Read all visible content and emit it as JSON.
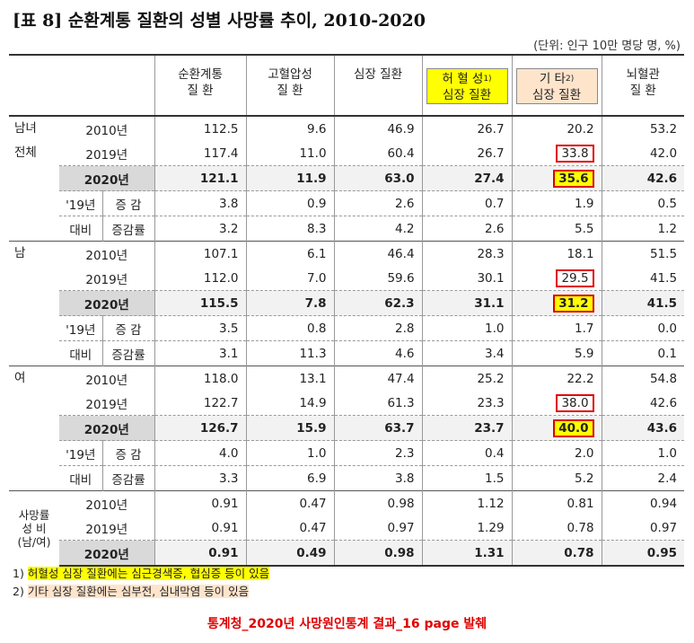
{
  "title": "[표 8] 순환계통 질환의 성별 사망률 추이, 2010-2020",
  "unit": "(단위: 인구 10만 명당 명, %)",
  "headers": {
    "c1_l1": "순환계통",
    "c1_l2": "질      환",
    "c2_l1": "고혈압성",
    "c2_l2": "질      환",
    "c3_l1": "심장 질환",
    "c4_l1": "허 혈 성",
    "c4_sup": "1)",
    "c4_l2": "심장 질환",
    "c5_l1": "기      타",
    "c5_sup": "2)",
    "c5_l2": "심장 질환",
    "c6_l1": "뇌혈관",
    "c6_l2": "질   환"
  },
  "groups": {
    "all_l1": "남녀",
    "all_l2": "전체",
    "male": "남",
    "female": "여",
    "ratio_l1": "사망률",
    "ratio_l2": "성 비",
    "ratio_l3": "(남/여)"
  },
  "labels": {
    "y2010": "2010년",
    "y2019": "2019년",
    "y2020": "2020년",
    "vs19": "'19년",
    "vs": "대비",
    "diff": "증  감",
    "rate": "증감률"
  },
  "rows": {
    "all": {
      "y2010": [
        "112.5",
        "9.6",
        "46.9",
        "26.7",
        "20.2",
        "53.2"
      ],
      "y2019": [
        "117.4",
        "11.0",
        "60.4",
        "26.7",
        "33.8",
        "42.0"
      ],
      "y2020": [
        "121.1",
        "11.9",
        "63.0",
        "27.4",
        "35.6",
        "42.6"
      ],
      "diff": [
        "3.8",
        "0.9",
        "2.6",
        "0.7",
        "1.9",
        "0.5"
      ],
      "rate": [
        "3.2",
        "8.3",
        "4.2",
        "2.6",
        "5.5",
        "1.2"
      ]
    },
    "male": {
      "y2010": [
        "107.1",
        "6.1",
        "46.4",
        "28.3",
        "18.1",
        "51.5"
      ],
      "y2019": [
        "112.0",
        "7.0",
        "59.6",
        "30.1",
        "29.5",
        "41.5"
      ],
      "y2020": [
        "115.5",
        "7.8",
        "62.3",
        "31.1",
        "31.2",
        "41.5"
      ],
      "diff": [
        "3.5",
        "0.8",
        "2.8",
        "1.0",
        "1.7",
        "0.0"
      ],
      "rate": [
        "3.1",
        "11.3",
        "4.6",
        "3.4",
        "5.9",
        "0.1"
      ]
    },
    "female": {
      "y2010": [
        "118.0",
        "13.1",
        "47.4",
        "25.2",
        "22.2",
        "54.8"
      ],
      "y2019": [
        "122.7",
        "14.9",
        "61.3",
        "23.3",
        "38.0",
        "42.6"
      ],
      "y2020": [
        "126.7",
        "15.9",
        "63.7",
        "23.7",
        "40.0",
        "43.6"
      ],
      "diff": [
        "4.0",
        "1.0",
        "2.3",
        "0.4",
        "2.0",
        "1.0"
      ],
      "rate": [
        "3.3",
        "6.9",
        "3.8",
        "1.5",
        "5.2",
        "2.4"
      ]
    },
    "ratio": {
      "y2010": [
        "0.91",
        "0.47",
        "0.98",
        "1.12",
        "0.81",
        "0.94"
      ],
      "y2019": [
        "0.91",
        "0.47",
        "0.97",
        "1.29",
        "0.78",
        "0.97"
      ],
      "y2020": [
        "0.91",
        "0.49",
        "0.98",
        "1.31",
        "0.78",
        "0.95"
      ]
    }
  },
  "footnotes": {
    "f1_num": "1)",
    "f1_text": "허혈성 심장 질환에는 심근경색증, 협심증 등이 있음",
    "f2_num": "2)",
    "f2_text": "기타 심장 질환에는 심부전, 심내막염 등이 있음"
  },
  "source": "통계청_2020년 사망원인통계 결과_16 page 발췌",
  "colors": {
    "highlight_yellow": "#ffff00",
    "highlight_peach": "#ffe4cc",
    "red": "#e00000"
  }
}
